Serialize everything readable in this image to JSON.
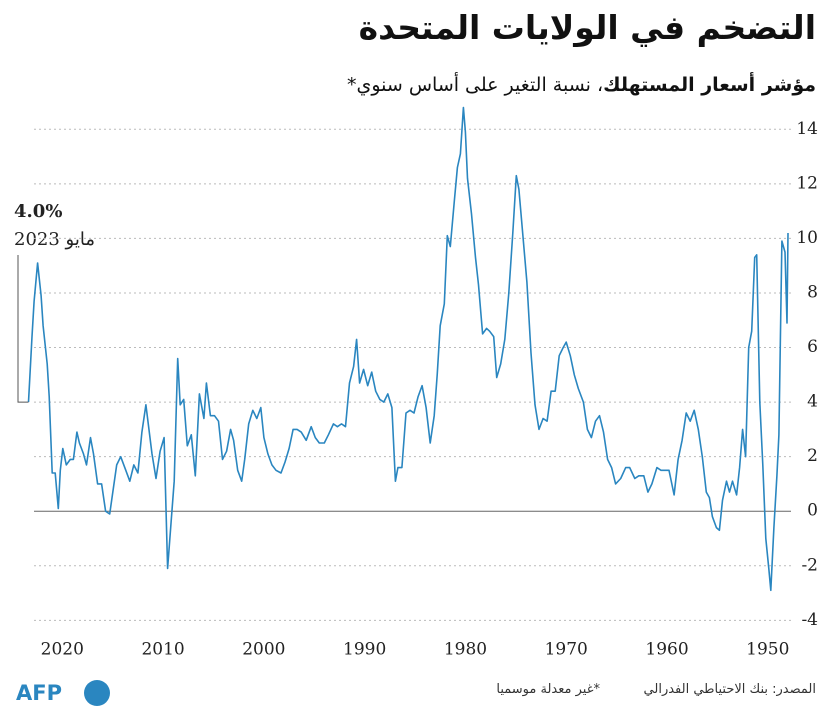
{
  "chart_data": {
    "type": "line",
    "title": "التضخم في الولايات المتحدة",
    "subtitle_bold": "مؤشر أسعار المستهلك",
    "subtitle": "، نسبة التغير على أساس سنوي*",
    "annotation_value": "4.0%",
    "annotation_date": "مايو 2023",
    "source": "المصدر: بنك الاحتياطي الفدرالي",
    "note": "*غير معدلة موسميا",
    "logo": "AFP",
    "color": "#2a86c0",
    "grid": true,
    "xlim": [
      2023.6,
      1947.7
    ],
    "xticks": [
      2020,
      2010,
      2000,
      1990,
      1980,
      1970,
      1960,
      1950
    ],
    "ylim": [
      -4.5,
      15
    ],
    "yticks": [
      -4,
      -2,
      0,
      2,
      4,
      6,
      8,
      10,
      12,
      14
    ],
    "x": [
      1948.0,
      1948.1,
      1948.3,
      1948.6,
      1948.9,
      1949.1,
      1949.4,
      1949.7,
      1949.9,
      1950.2,
      1950.5,
      1950.8,
      1951.1,
      1951.3,
      1951.6,
      1951.9,
      1952.2,
      1952.5,
      1952.8,
      1953.1,
      1953.5,
      1953.8,
      1954.1,
      1954.5,
      1954.8,
      1955.1,
      1955.5,
      1955.8,
      1956.1,
      1956.5,
      1956.9,
      1957.3,
      1957.7,
      1958.1,
      1958.5,
      1958.9,
      1959.3,
      1959.8,
      1960.2,
      1960.6,
      1961.0,
      1961.5,
      1961.9,
      1962.3,
      1962.8,
      1963.2,
      1963.7,
      1964.1,
      1964.6,
      1965.1,
      1965.5,
      1965.9,
      1966.3,
      1966.7,
      1967.1,
      1967.5,
      1967.9,
      1968.3,
      1968.8,
      1969.2,
      1969.6,
      1970.0,
      1970.3,
      1970.7,
      1971.1,
      1971.5,
      1971.9,
      1972.3,
      1972.7,
      1973.1,
      1973.5,
      1973.9,
      1974.3,
      1974.7,
      1974.95,
      1975.3,
      1975.7,
      1976.1,
      1976.5,
      1976.9,
      1977.2,
      1977.6,
      1977.9,
      1978.3,
      1978.7,
      1979.0,
      1979.4,
      1979.8,
      1980.0,
      1980.2,
      1980.5,
      1980.8,
      1981.1,
      1981.5,
      1981.8,
      1982.1,
      1982.5,
      1982.8,
      1983.1,
      1983.5,
      1983.9,
      1984.3,
      1984.7,
      1985.1,
      1985.5,
      1985.9,
      1986.3,
      1986.7,
      1986.95,
      1987.3,
      1987.7,
      1988.1,
      1988.5,
      1988.9,
      1989.3,
      1989.7,
      1990.1,
      1990.5,
      1990.8,
      1991.1,
      1991.5,
      1991.9,
      1992.3,
      1992.7,
      1993.1,
      1993.6,
      1994.0,
      1994.5,
      1994.9,
      1995.3,
      1995.8,
      1996.3,
      1996.7,
      1997.1,
      1997.5,
      1997.9,
      1998.3,
      1998.8,
      1999.2,
      1999.6,
      2000.0,
      2000.3,
      2000.7,
      2001.1,
      2001.5,
      2001.9,
      2002.2,
      2002.6,
      2003.0,
      2003.3,
      2003.7,
      2004.1,
      2004.5,
      2004.9,
      2005.3,
      2005.7,
      2005.95,
      2006.4,
      2006.8,
      2007.2,
      2007.6,
      2007.95,
      2008.3,
      2008.55,
      2008.9,
      2009.2,
      2009.55,
      2009.9,
      2010.3,
      2010.7,
      2011.1,
      2011.7,
      2012.1,
      2012.5,
      2012.9,
      2013.3,
      2013.7,
      2014.2,
      2014.6,
      2014.95,
      2015.3,
      2015.7,
      2016.1,
      2016.5,
      2016.9,
      2017.2,
      2017.6,
      2017.9,
      2018.3,
      2018.55,
      2018.9,
      2019.2,
      2019.6,
      2019.95,
      2020.2,
      2020.4,
      2020.7,
      2021.0,
      2021.3,
      2021.5,
      2021.9,
      2022.1,
      2022.45,
      2022.8,
      2023.0,
      2023.35
    ],
    "values": [
      10.2,
      6.9,
      9.5,
      9.9,
      2.8,
      1.3,
      -0.6,
      -2.9,
      -2.1,
      -1.0,
      1.7,
      4.0,
      9.4,
      9.3,
      6.6,
      6.0,
      2.0,
      3.0,
      1.6,
      0.6,
      1.1,
      0.7,
      1.1,
      0.4,
      -0.7,
      -0.6,
      -0.2,
      0.5,
      0.7,
      2.0,
      3.0,
      3.7,
      3.3,
      3.6,
      2.6,
      1.9,
      0.6,
      1.5,
      1.5,
      1.5,
      1.6,
      1.0,
      0.7,
      1.3,
      1.3,
      1.2,
      1.6,
      1.6,
      1.2,
      1.0,
      1.6,
      1.9,
      2.9,
      3.5,
      3.3,
      2.7,
      3.0,
      4.0,
      4.5,
      5.0,
      5.7,
      6.2,
      6.0,
      5.7,
      4.4,
      4.4,
      3.3,
      3.4,
      3.0,
      3.9,
      5.8,
      8.4,
      10.1,
      11.8,
      12.3,
      10.2,
      8.0,
      6.3,
      5.4,
      4.9,
      6.4,
      6.6,
      6.7,
      6.5,
      8.3,
      9.3,
      10.9,
      12.2,
      13.9,
      14.8,
      13.1,
      12.6,
      11.4,
      9.7,
      10.1,
      7.6,
      6.8,
      5.0,
      3.5,
      2.5,
      3.8,
      4.6,
      4.2,
      3.6,
      3.7,
      3.6,
      1.6,
      1.6,
      1.1,
      3.8,
      4.3,
      4.0,
      4.1,
      4.4,
      5.1,
      4.6,
      5.2,
      4.7,
      6.3,
      5.3,
      4.7,
      3.1,
      3.2,
      3.1,
      3.2,
      2.8,
      2.5,
      2.5,
      2.7,
      3.1,
      2.6,
      2.9,
      3.0,
      3.0,
      2.3,
      1.8,
      1.4,
      1.5,
      1.7,
      2.1,
      2.7,
      3.8,
      3.4,
      3.7,
      3.2,
      1.9,
      1.1,
      1.5,
      2.6,
      3.0,
      2.2,
      1.9,
      3.3,
      3.5,
      3.5,
      4.7,
      3.4,
      4.3,
      1.3,
      2.8,
      2.4,
      4.1,
      3.9,
      5.6,
      1.1,
      -0.4,
      -2.1,
      2.7,
      2.2,
      1.2,
      2.1,
      3.9,
      2.9,
      1.4,
      1.7,
      1.1,
      1.5,
      2.0,
      1.7,
      0.8,
      -0.1,
      0.0,
      1.0,
      1.0,
      2.1,
      2.7,
      1.7,
      2.1,
      2.5,
      2.9,
      1.9,
      1.9,
      1.7,
      2.3,
      1.5,
      0.1,
      1.4,
      1.4,
      4.2,
      5.4,
      6.8,
      7.9,
      9.1,
      7.7,
      6.4,
      4.0
    ]
  }
}
